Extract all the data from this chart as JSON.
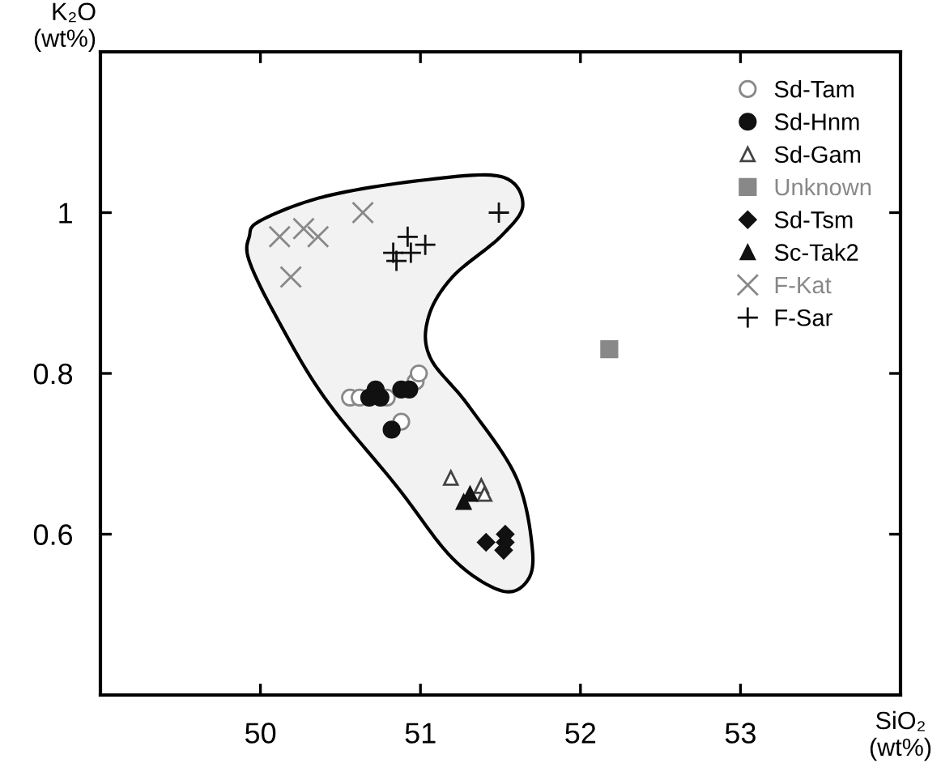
{
  "chart_data": {
    "type": "scatter",
    "xlabel": "SiO₂\n(wt%)",
    "ylabel": "K₂O\n(wt%)",
    "xlim": [
      49,
      54
    ],
    "xticks": [
      50,
      51,
      52,
      53
    ],
    "ylim": [
      0.4,
      1.2
    ],
    "yticks": [
      {
        "value": 0.6,
        "label": "0.6"
      },
      {
        "value": 0.8,
        "label": "0.8"
      },
      {
        "value": 1.0,
        "label": "1"
      }
    ],
    "grid": false,
    "legend": "top right",
    "series": [
      {
        "name": "Sd-Tam",
        "color": "#888888",
        "marker": "circle-open",
        "x": [
          50.56,
          50.62,
          50.79,
          50.97,
          50.99,
          50.88
        ],
        "values": [
          0.77,
          0.77,
          0.77,
          0.79,
          0.8,
          0.74
        ]
      },
      {
        "name": "Sd-Hnm",
        "color": "#111111",
        "marker": "circle",
        "x": [
          50.68,
          50.72,
          50.75,
          50.88,
          50.93,
          50.82
        ],
        "values": [
          0.77,
          0.78,
          0.77,
          0.78,
          0.78,
          0.73
        ]
      },
      {
        "name": "Sd-Gam",
        "color": "#444444",
        "marker": "triangle-open",
        "x": [
          51.19,
          51.38,
          51.4
        ],
        "values": [
          0.67,
          0.66,
          0.65
        ]
      },
      {
        "name": "Unknown",
        "color": "#888888",
        "marker": "square",
        "x": [
          52.18
        ],
        "values": [
          0.83
        ]
      },
      {
        "name": "Sd-Tsm",
        "color": "#111111",
        "marker": "diamond",
        "x": [
          51.41,
          51.53,
          51.53,
          51.52
        ],
        "values": [
          0.59,
          0.6,
          0.59,
          0.58
        ]
      },
      {
        "name": "Sc-Tak2",
        "color": "#111111",
        "marker": "triangle",
        "x": [
          51.27,
          51.31
        ],
        "values": [
          0.64,
          0.65
        ]
      },
      {
        "name": "F-Kat",
        "color": "#888888",
        "marker": "cross",
        "x": [
          50.12,
          50.27,
          50.36,
          50.64,
          50.19
        ],
        "values": [
          0.97,
          0.98,
          0.97,
          1.0,
          0.92
        ]
      },
      {
        "name": "F-Sar",
        "color": "#111111",
        "marker": "plus",
        "x": [
          50.92,
          50.83,
          50.85,
          50.94,
          51.03,
          51.49
        ],
        "values": [
          0.97,
          0.95,
          0.94,
          0.95,
          0.96,
          1.0
        ]
      }
    ]
  }
}
